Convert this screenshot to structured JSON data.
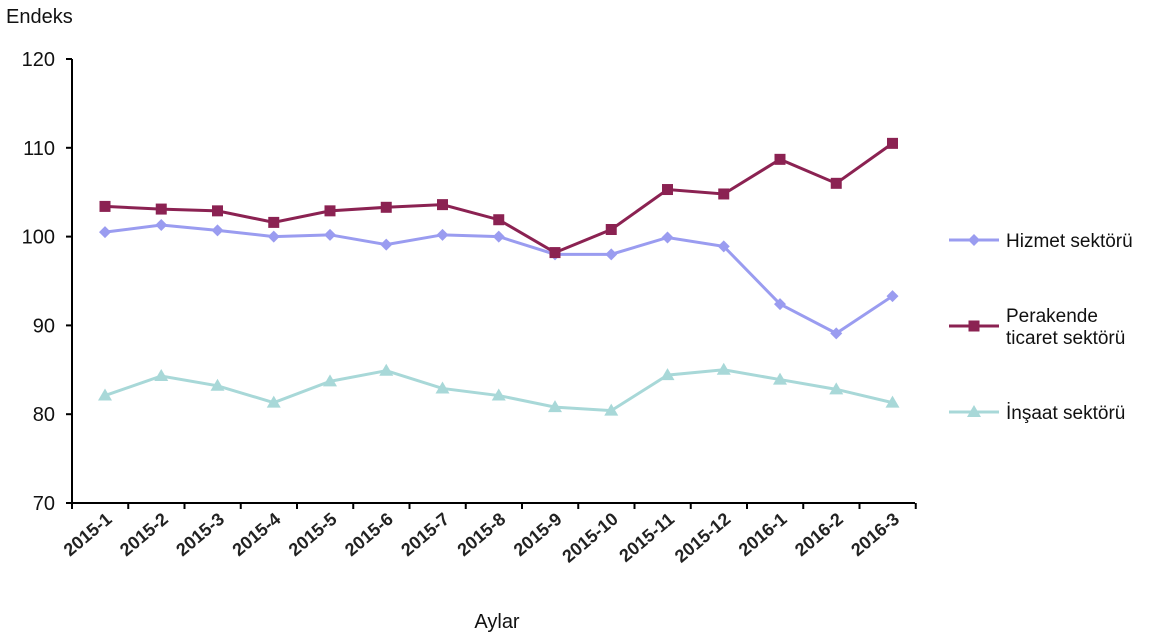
{
  "chart_data": {
    "type": "line",
    "ylabel": "Endeks",
    "xlabel": "Aylar",
    "ylim": [
      70,
      120
    ],
    "yticks": [
      70,
      80,
      90,
      100,
      110,
      120
    ],
    "categories": [
      "2015-1",
      "2015-2",
      "2015-3",
      "2015-4",
      "2015-5",
      "2015-6",
      "2015-7",
      "2015-8",
      "2015-9",
      "2015-10",
      "2015-11",
      "2015-12",
      "2016-1",
      "2016-2",
      "2016-3"
    ],
    "grid": false,
    "legend_position": "right",
    "series": [
      {
        "name": "Hizmet sektörü",
        "color": "#9a9cf0",
        "marker": "diamond",
        "values": [
          100.5,
          101.3,
          100.7,
          100.0,
          100.2,
          99.1,
          100.2,
          100.0,
          98.0,
          98.0,
          99.9,
          98.9,
          92.4,
          89.1,
          93.3
        ]
      },
      {
        "name": "Perakende ticaret sektörü",
        "name_lines": [
          "Perakende",
          "ticaret sektörü"
        ],
        "color": "#8b2252",
        "marker": "square",
        "values": [
          103.4,
          103.1,
          102.9,
          101.6,
          102.9,
          103.3,
          103.6,
          101.9,
          98.2,
          100.8,
          105.3,
          104.8,
          108.7,
          106.0,
          110.5
        ]
      },
      {
        "name": "İnşaat sektörü",
        "color": "#a8d8d8",
        "marker": "triangle",
        "values": [
          82.1,
          84.3,
          83.2,
          81.3,
          83.7,
          84.9,
          82.9,
          82.1,
          80.8,
          80.4,
          84.4,
          85.0,
          83.9,
          82.8,
          81.3
        ]
      }
    ]
  }
}
